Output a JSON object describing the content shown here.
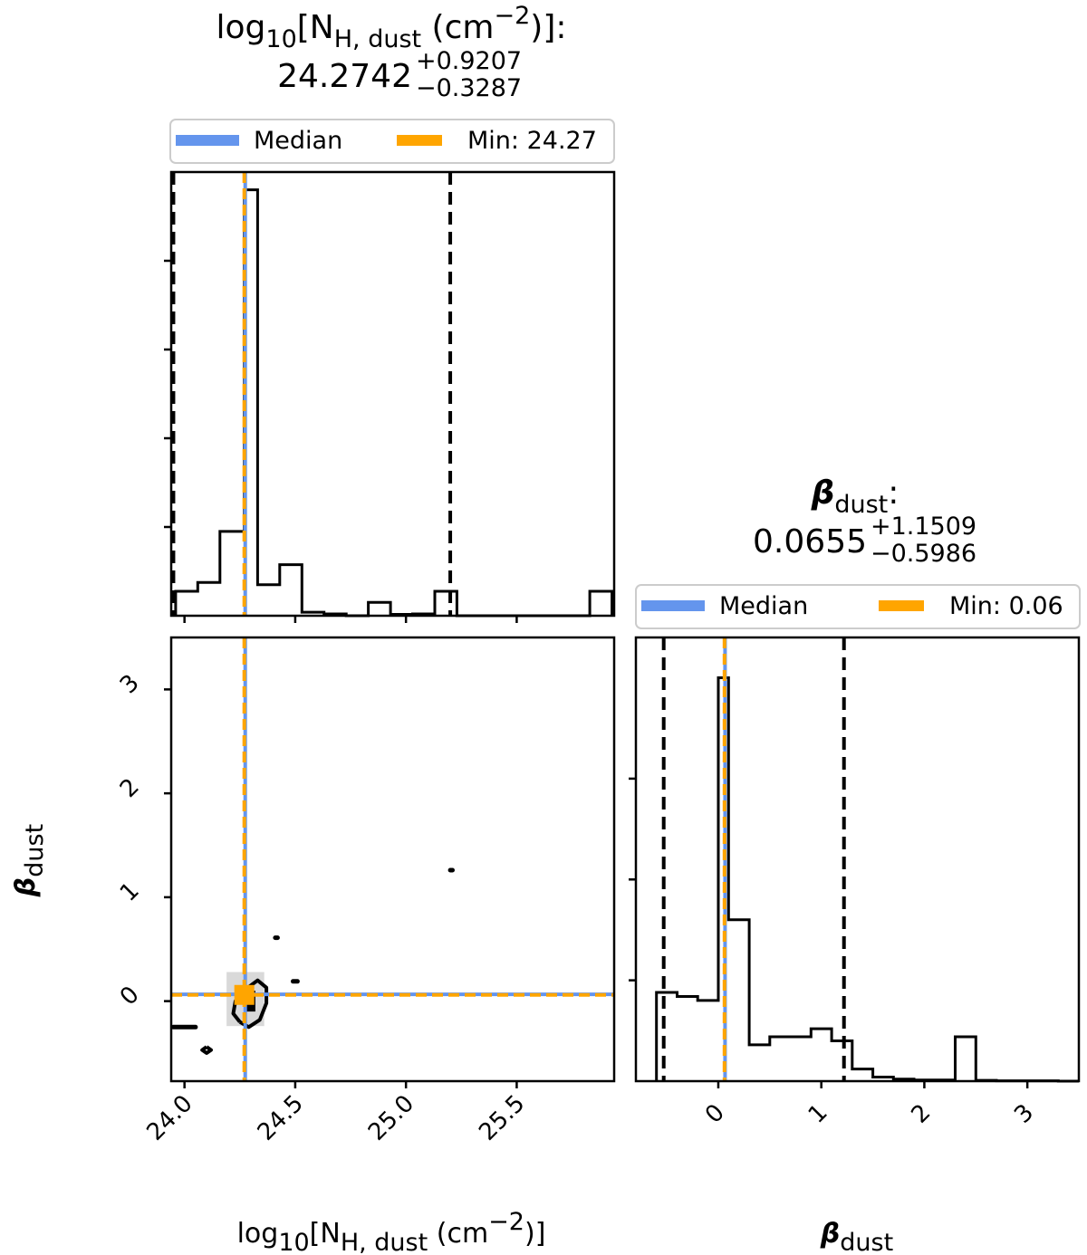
{
  "chart_data": [
    {
      "type": "bar",
      "panel": "histogram",
      "title": {
        "base": "log",
        "base_sub": "10",
        "name_open": "[N",
        "name_sub": "H, dust",
        "unit_open": " (cm",
        "unit_sup": "−2",
        "unit_close": ")]:",
        "value": "24.2742",
        "err_plus": "+0.9207",
        "err_minus": "−0.3287"
      },
      "legend": {
        "placement": "above",
        "median_label": "Median",
        "min_label": "Min: 24.27",
        "median_color": "#6495ed",
        "min_color": "#ffa500"
      },
      "bin_edges": [
        23.96,
        24.06,
        24.16,
        24.27,
        24.33,
        24.43,
        24.53,
        24.63,
        24.73,
        24.83,
        24.93,
        25.03,
        25.13,
        25.23,
        25.33,
        25.43,
        25.53,
        25.63,
        25.73,
        25.83,
        25.93
      ],
      "counts": [
        0.055,
        0.075,
        0.19,
        0.96,
        0.07,
        0.115,
        0.008,
        0.004,
        0.0,
        0.03,
        0.003,
        0.004,
        0.055,
        0.0,
        0.0,
        0.0,
        0.0,
        0.0,
        0.0,
        0.055
      ],
      "median": 24.2742,
      "min": 24.27,
      "quantile_lines": [
        23.95,
        25.2
      ],
      "xlim": [
        23.94,
        25.94
      ],
      "ylim": [
        0,
        1.0
      ],
      "xticks": [
        24.0,
        24.5,
        25.0,
        25.5
      ],
      "yticks": [
        0.2,
        0.4,
        0.6,
        0.8
      ]
    },
    {
      "type": "contour",
      "panel": "2d",
      "xlabel": {
        "base": "log",
        "base_sub": "10",
        "name_open": "[N",
        "name_sub": "H, dust",
        "unit_open": " (cm",
        "unit_sup": "−2",
        "unit_close": ")]"
      },
      "ylabel": {
        "symbol": "β",
        "sub": "dust"
      },
      "xlim": [
        23.94,
        25.94
      ],
      "ylim": [
        -0.77,
        3.5
      ],
      "xticks": [
        24.0,
        24.5,
        25.0,
        25.5
      ],
      "xtick_labels": [
        "24.0",
        "24.5",
        "25.0",
        "25.5"
      ],
      "yticks": [
        0,
        1,
        2,
        3
      ],
      "ytick_labels": [
        "0",
        "1",
        "2",
        "3"
      ],
      "median": {
        "x": 24.2742,
        "y": 0.0655
      },
      "min_point": {
        "x": 24.27,
        "y": 0.06
      },
      "contours": [
        [
          [
            24.25,
            -0.2
          ],
          [
            24.22,
            -0.12
          ],
          [
            24.23,
            0.0
          ],
          [
            24.28,
            0.12
          ],
          [
            24.33,
            0.2
          ],
          [
            24.37,
            0.13
          ],
          [
            24.37,
            -0.02
          ],
          [
            24.34,
            -0.18
          ],
          [
            24.29,
            -0.25
          ],
          [
            24.25,
            -0.2
          ]
        ],
        [
          [
            24.1,
            -0.44
          ],
          [
            24.12,
            -0.47
          ],
          [
            24.1,
            -0.5
          ],
          [
            24.08,
            -0.47
          ],
          [
            24.1,
            -0.44
          ]
        ],
        [
          [
            23.95,
            -0.25
          ],
          [
            24.05,
            -0.25
          ]
        ],
        [
          [
            24.49,
            0.19
          ],
          [
            24.51,
            0.19
          ]
        ],
        [
          [
            24.41,
            0.61
          ],
          [
            24.42,
            0.61
          ]
        ],
        [
          [
            25.2,
            1.26
          ],
          [
            25.21,
            1.26
          ]
        ]
      ]
    },
    {
      "type": "bar",
      "panel": "histogram",
      "title": {
        "symbol": "β",
        "sub": "dust",
        "colon": ":",
        "value": "0.0655",
        "err_plus": "+1.1509",
        "err_minus": "−0.5986"
      },
      "legend": {
        "placement": "above",
        "median_label": "Median",
        "min_label": "Min: 0.06",
        "median_color": "#6495ed",
        "min_color": "#ffa500"
      },
      "xlabel": {
        "symbol": "β",
        "sub": "dust"
      },
      "bin_edges": [
        -0.6,
        -0.4,
        -0.2,
        0.0,
        0.1,
        0.3,
        0.5,
        0.7,
        0.9,
        1.1,
        1.3,
        1.5,
        1.7,
        1.9,
        2.1,
        2.3,
        2.5,
        2.7,
        2.9,
        3.1,
        3.3,
        3.5
      ],
      "counts": [
        0.22,
        0.21,
        0.2,
        1.0,
        0.4,
        0.09,
        0.11,
        0.11,
        0.13,
        0.1,
        0.03,
        0.01,
        0.005,
        0.003,
        0.003,
        0.11,
        0.002,
        0.001,
        0.001,
        0.001,
        0.0
      ],
      "median": 0.0655,
      "min": 0.06,
      "quantile_lines": [
        -0.53,
        1.22
      ],
      "xlim": [
        -0.8,
        3.5
      ],
      "ylim": [
        0,
        1.1
      ],
      "xticks": [
        0,
        1,
        2,
        3
      ],
      "xtick_labels": [
        "0",
        "1",
        "2",
        "3"
      ],
      "yticks": [
        0.25,
        0.5,
        0.75
      ]
    }
  ]
}
